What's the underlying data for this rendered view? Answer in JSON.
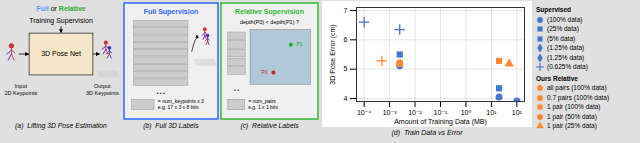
{
  "chart_data": [
    {
      "type": "diagram",
      "title": "Full or Relative",
      "title_colors": {
        "Full": "#5599ff",
        "Relative": "#33aa33"
      },
      "subtitle": "Training Supervision",
      "annotations": [
        {
          "text": "3D Pose Net"
        },
        {
          "text": "Input\n2D Keypoints"
        },
        {
          "text": "Output\n3D Keypoints"
        }
      ],
      "caption": "(a)  Lifting 3D Pose Estimation"
    },
    {
      "type": "diagram",
      "title": "Full Supervision",
      "color": "#3366ff",
      "bars": 9,
      "annotations": [
        {
          "text": "• • •"
        },
        {
          "text": "= num_keypoints x 3\ne.g. 17 x 3 x 8 bits"
        }
      ],
      "caption": "(b)  Full 3D Labels"
    },
    {
      "type": "diagram",
      "title": "Relative Supervision",
      "color": "#33bb33",
      "bars": 5,
      "annotations": [
        {
          "text": "depth(P0) < depth(P1) ?"
        },
        {
          "text": "• •"
        },
        {
          "text": "P0",
          "color": "#cc2222"
        },
        {
          "text": "P1",
          "color": "#22aa22"
        },
        {
          "text": "= num_pairs\ne.g. 1 x 1 bits"
        }
      ],
      "caption": "(c)  Relative Labels"
    },
    {
      "type": "scatter",
      "caption": "(d)  Train Data vs Error",
      "xlabel": "Amount of Training Data (MB)",
      "ylabel": "3D Pose Error (cm)",
      "log": "x",
      "xlim": [
        5.011872336272722e-05,
        199.52623149688796
      ],
      "xticks": [
        {
          "value": 0.0001,
          "label": "10⁻⁴"
        },
        {
          "value": 0.001,
          "label": "10⁻³"
        },
        {
          "value": 0.01,
          "label": "10⁻²"
        },
        {
          "value": 0.1,
          "label": "10⁻¹"
        },
        {
          "value": 1,
          "label": "10⁰"
        },
        {
          "value": 10,
          "label": "10¹"
        },
        {
          "value": 100,
          "label": "10²"
        }
      ],
      "ylim": [
        3.9,
        7.1
      ],
      "yticks": [
        4,
        5,
        6,
        7
      ],
      "grid": true,
      "legend": "right",
      "series": [
        {
          "name": "Supervised",
          "color": "#4477cc",
          "x": [
            0.0001,
            0.0025,
            0.0025,
            0.0025,
            20.0,
            20.0,
            100.0
          ],
          "values": [
            6.6,
            6.35,
            5.5,
            5.12,
            4.35,
            4.05,
            3.92
          ],
          "markers": [
            "plus",
            "plus",
            "square",
            "circle",
            "square",
            "circle",
            "circle"
          ],
          "legend_entries": [
            {
              "marker": "circle",
              "label": "(100% data)"
            },
            {
              "marker": "square",
              "label": "(25% data)"
            },
            {
              "marker": "square",
              "label": "(5% data)"
            },
            {
              "marker": "diamond",
              "label": "(1.25% data)"
            },
            {
              "marker": "diamond",
              "label": "(1.25% data)"
            },
            {
              "marker": "plus",
              "label": "(0.625% data)"
            }
          ]
        },
        {
          "name": "Ours Relative",
          "color": "#ff8833",
          "x": [
            0.0005,
            0.0025,
            0.0025,
            20.0,
            50.0
          ],
          "values": [
            5.28,
            5.22,
            5.18,
            5.28,
            5.18
          ],
          "markers": [
            "plus",
            "circle",
            "square",
            "square",
            "triangle"
          ],
          "legend_entries": [
            {
              "marker": "circle",
              "label": "all pairs (100% data)"
            },
            {
              "marker": "circle",
              "label": "0.7 pairs (100% data)"
            },
            {
              "marker": "square",
              "label": "1 pair (100% data)"
            },
            {
              "marker": "circle",
              "label": "1 pair (50% data)"
            },
            {
              "marker": "triangle",
              "label": "1 pair (25% data)"
            }
          ]
        }
      ]
    }
  ]
}
